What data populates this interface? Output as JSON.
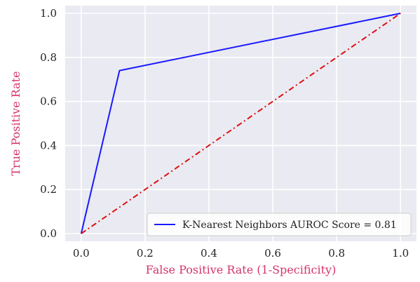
{
  "chart_data": {
    "type": "line",
    "xlabel": "False Positive Rate (1-Specificity)",
    "ylabel": "True Positive Rate",
    "xlim": [
      -0.05,
      1.05
    ],
    "ylim": [
      -0.035,
      1.035
    ],
    "xticks": [
      "0.0",
      "0.2",
      "0.4",
      "0.6",
      "0.8",
      "1.0"
    ],
    "yticks": [
      "0.0",
      "0.2",
      "0.4",
      "0.6",
      "0.8",
      "1.0"
    ],
    "grid": true,
    "legend_position": "lower-right",
    "series": [
      {
        "name": "K-Nearest Neighbors AUROC Score = 0.81",
        "color": "#1a1aff",
        "style": "solid",
        "x": [
          0.0,
          0.12,
          1.0
        ],
        "y": [
          0.0,
          0.74,
          1.0
        ]
      },
      {
        "color": "#dd1111",
        "style": "dash-dot",
        "x": [
          0.0,
          1.0
        ],
        "y": [
          0.0,
          1.0
        ]
      }
    ],
    "colors": {
      "background": "#eaeaf2",
      "grid": "#ffffff",
      "label": "#d6336c"
    }
  }
}
